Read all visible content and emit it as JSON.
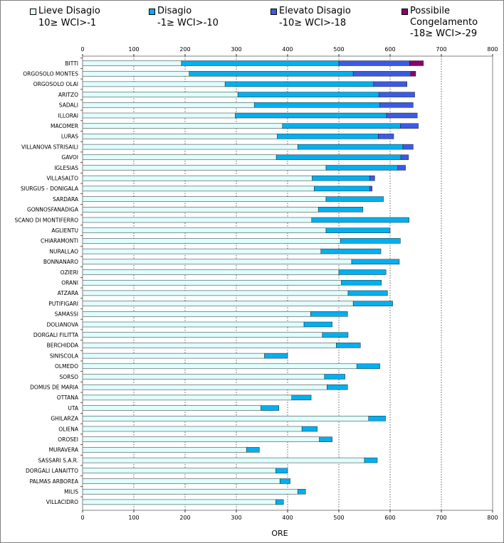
{
  "colors": {
    "lieve": "#E0FFFF",
    "disagio": "#00B0F0",
    "elevato": "#3B5BE6",
    "congelamento": "#8B006F"
  },
  "legend": [
    {
      "key": "lieve",
      "label": "Lieve Disagio",
      "range": "10≥ WCI>-1"
    },
    {
      "key": "disagio",
      "label": "Disagio",
      "range": "-1≥ WCI>-10"
    },
    {
      "key": "elevato",
      "label": "Elevato Disagio",
      "range": "-10≥ WCI>-18"
    },
    {
      "key": "congelamento",
      "label": "Possibile",
      "label2": "Congelamento",
      "range": "-18≥ WCI>-29"
    }
  ],
  "chart_data": {
    "type": "bar",
    "orientation": "horizontal",
    "stacked": true,
    "xlabel": "ORE",
    "xlim": [
      0,
      800
    ],
    "xticks": [
      "0",
      "100",
      "200",
      "300",
      "400",
      "500",
      "600",
      "700",
      "800"
    ],
    "categories": [
      "BITTI",
      "ORGOSOLO MONTES",
      "ORGOSOLO OLAI",
      "ARITZO",
      "SADALI",
      "ILLORAI",
      "MACOMER",
      "LURAS",
      "VILLANOVA STRISAILI",
      "GAVOI",
      "IGLESIAS",
      "VILLASALTO",
      "SIURGUS - DONIGALA",
      "SARDARA",
      "GONNOSFANADIGA",
      "SCANO DI MONTIFERRO",
      "AGLIENTU",
      "CHIARAMONTI",
      "NURALLAO",
      "BONNANARO",
      "OZIERI",
      "ORANI",
      "ATZARA",
      "PUTIFIGARI",
      "SAMASSI",
      "DOLIANOVA",
      "DORGALI FILITTA",
      "BERCHIDDA",
      "SINISCOLA",
      "OLMEDO",
      "SORSO",
      "DOMUS DE MARIA",
      "OTTANA",
      "UTA",
      "GHILARZA",
      "OLIENA",
      "OROSEI",
      "MURAVERA",
      "SASSARI S.A.R.",
      "DORGALI LANAITTO",
      "PALMAS ARBOREA",
      "MILIS",
      "VILLACIDRO"
    ],
    "series": [
      {
        "name": "Lieve Disagio",
        "key": "lieve",
        "values": [
          193,
          208,
          278,
          303,
          335,
          298,
          390,
          380,
          420,
          378,
          475,
          448,
          452,
          475,
          460,
          447,
          475,
          503,
          465,
          525,
          500,
          505,
          518,
          528,
          445,
          432,
          468,
          495,
          355,
          535,
          472,
          477,
          408,
          348,
          558,
          428,
          462,
          320,
          550,
          377,
          385,
          420,
          377
        ]
      },
      {
        "name": "Disagio",
        "key": "disagio",
        "values": [
          307,
          320,
          290,
          275,
          245,
          295,
          230,
          197,
          205,
          243,
          140,
          112,
          108,
          112,
          87,
          190,
          125,
          117,
          117,
          93,
          92,
          78,
          77,
          77,
          72,
          55,
          50,
          47,
          45,
          45,
          40,
          40,
          38,
          35,
          33,
          30,
          25,
          25,
          25,
          23,
          20,
          15,
          15
        ]
      },
      {
        "name": "Elevato Disagio",
        "key": "elevato",
        "values": [
          138,
          112,
          65,
          70,
          65,
          60,
          35,
          30,
          20,
          15,
          15,
          10,
          5,
          0,
          0,
          0,
          0,
          0,
          0,
          0,
          0,
          0,
          0,
          0,
          0,
          0,
          0,
          0,
          0,
          0,
          0,
          0,
          0,
          0,
          0,
          0,
          0,
          0,
          0,
          0,
          0,
          0,
          0
        ]
      },
      {
        "name": "Possibile Congelamento",
        "key": "congelamento",
        "values": [
          27,
          10,
          0,
          0,
          0,
          0,
          0,
          0,
          0,
          0,
          0,
          0,
          0,
          0,
          0,
          0,
          0,
          0,
          0,
          0,
          0,
          0,
          0,
          0,
          0,
          0,
          0,
          0,
          0,
          0,
          0,
          0,
          0,
          0,
          0,
          0,
          0,
          0,
          0,
          0,
          0,
          0,
          0
        ]
      }
    ]
  }
}
